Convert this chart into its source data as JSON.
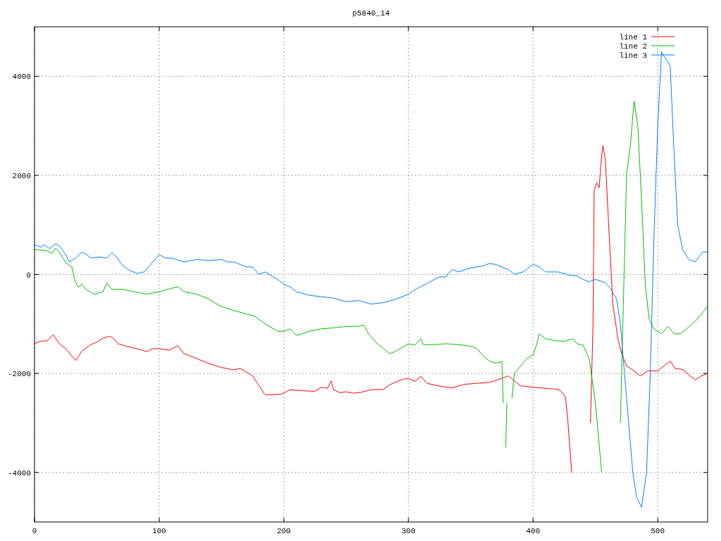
{
  "chart_data": {
    "type": "line",
    "title": "p5840_14",
    "xlim": [
      0,
      540
    ],
    "ylim": [
      -5000,
      5000
    ],
    "xticks": [
      0,
      100,
      200,
      300,
      400,
      500
    ],
    "yticks": [
      -4000,
      -2000,
      0,
      2000,
      4000
    ],
    "grid": true,
    "legend": "top right",
    "line_style": "solid",
    "marker": "none",
    "series": [
      {
        "name": "line 1",
        "color": "#ff0000",
        "x": [
          0,
          5,
          10,
          15,
          20,
          25,
          30,
          33,
          38,
          45,
          50,
          55,
          60,
          63,
          67,
          75,
          85,
          90,
          95,
          100,
          108,
          115,
          120,
          130,
          140,
          150,
          160,
          165,
          175,
          180,
          185,
          190,
          198,
          205,
          215,
          225,
          230,
          235,
          238,
          240,
          245,
          250,
          255,
          262,
          270,
          280,
          285,
          295,
          300,
          305,
          310,
          315,
          325,
          335,
          345,
          355,
          365,
          375,
          380,
          390,
          400,
          410,
          420,
          423,
          426,
          428,
          431,
          432.5,
          438,
          444,
          446,
          448,
          449,
          451,
          453,
          455,
          456,
          458,
          461,
          464,
          468,
          471,
          475,
          480,
          486,
          492,
          500,
          505,
          510,
          514,
          520,
          526,
          530,
          535,
          540
        ],
        "values": [
          -1400,
          -1350,
          -1340,
          -1220,
          -1400,
          -1500,
          -1650,
          -1740,
          -1550,
          -1420,
          -1370,
          -1290,
          -1250,
          -1280,
          -1400,
          -1460,
          -1520,
          -1560,
          -1500,
          -1500,
          -1530,
          -1440,
          -1600,
          -1700,
          -1800,
          -1880,
          -1930,
          -1900,
          -2050,
          -2250,
          -2430,
          -2430,
          -2420,
          -2330,
          -2350,
          -2360,
          -2280,
          -2300,
          -2150,
          -2330,
          -2390,
          -2370,
          -2400,
          -2380,
          -2330,
          -2320,
          -2230,
          -2120,
          -2100,
          -2160,
          -2060,
          -2200,
          -2260,
          -2290,
          -2220,
          -2200,
          -2180,
          -2100,
          -2050,
          -2250,
          -2280,
          -2300,
          -2320,
          -2380,
          -2480,
          -3000,
          -4000,
          null,
          null,
          null,
          -3000,
          -1100,
          1700,
          1850,
          1750,
          2400,
          2600,
          2300,
          800,
          -600,
          -1300,
          -1600,
          -1850,
          -1930,
          -2050,
          -1950,
          -1950,
          -1850,
          -1750,
          -1900,
          -1920,
          -2050,
          -2130,
          -2050,
          -2000
        ]
      },
      {
        "name": "line 2",
        "color": "#00c000",
        "x": [
          0,
          10,
          14,
          17,
          20,
          25,
          30,
          32,
          35,
          38,
          42,
          48,
          55,
          58,
          62,
          70,
          80,
          90,
          100,
          110,
          115,
          120,
          130,
          140,
          145,
          150,
          160,
          170,
          177,
          185,
          195,
          200,
          205,
          210,
          215,
          220,
          230,
          240,
          250,
          260,
          264,
          268,
          275,
          285,
          290,
          300,
          305,
          310,
          312,
          320,
          330,
          340,
          350,
          355,
          360,
          365,
          370,
          375,
          376,
          377,
          378,
          379,
          380,
          381,
          383,
          385,
          390,
          395,
          400,
          403,
          405,
          410,
          418,
          425,
          432,
          435,
          440,
          445,
          450,
          455,
          458,
          462,
          467,
          470,
          473,
          475,
          478,
          481,
          484,
          487,
          490,
          493,
          497,
          503,
          508,
          513,
          518,
          523,
          530,
          535,
          540
        ],
        "values": [
          500,
          480,
          420,
          530,
          450,
          240,
          150,
          -100,
          -260,
          -200,
          -320,
          -400,
          -350,
          -170,
          -300,
          -300,
          -350,
          -400,
          -350,
          -280,
          -250,
          -350,
          -400,
          -500,
          -580,
          -650,
          -730,
          -800,
          -850,
          -1000,
          -1150,
          -1150,
          -1100,
          -1230,
          -1200,
          -1150,
          -1100,
          -1080,
          -1050,
          -1050,
          -1020,
          -1200,
          -1400,
          -1600,
          -1550,
          -1400,
          -1430,
          -1300,
          -1420,
          -1420,
          -1400,
          -1420,
          -1450,
          -1500,
          -1650,
          -1750,
          -1790,
          -1760,
          -2600,
          null,
          -3500,
          -2600,
          null,
          null,
          -2500,
          -2000,
          -1850,
          -1700,
          -1630,
          -1400,
          -1200,
          -1300,
          -1340,
          -1350,
          -1300,
          -1400,
          -1430,
          -1700,
          -2600,
          -4000,
          null,
          null,
          null,
          -3000,
          0,
          2000,
          2600,
          3500,
          3000,
          1500,
          -200,
          -900,
          -1100,
          -1200,
          -1050,
          -1200,
          -1200,
          -1100,
          -950,
          -800,
          -650
        ]
      },
      {
        "name": "line 3",
        "color": "#0080ff",
        "x": [
          0,
          5,
          8,
          12,
          17,
          20,
          25,
          28,
          33,
          38,
          42,
          45,
          52,
          58,
          62,
          66,
          70,
          75,
          82,
          88,
          95,
          100,
          105,
          110,
          120,
          130,
          140,
          150,
          155,
          160,
          170,
          175,
          180,
          185,
          195,
          200,
          205,
          210,
          220,
          230,
          240,
          250,
          260,
          270,
          280,
          290,
          300,
          305,
          315,
          325,
          330,
          335,
          340,
          350,
          360,
          365,
          370,
          380,
          385,
          392,
          400,
          405,
          410,
          420,
          430,
          435,
          440,
          445,
          450,
          458,
          462,
          467,
          470,
          475,
          480,
          483,
          487,
          491,
          494,
          497,
          500,
          503,
          505,
          508,
          510,
          513,
          516,
          520,
          525,
          530,
          533,
          536,
          540
        ],
        "values": [
          600,
          550,
          600,
          520,
          620,
          570,
          400,
          250,
          330,
          450,
          400,
          330,
          350,
          330,
          440,
          350,
          200,
          100,
          20,
          50,
          250,
          400,
          330,
          330,
          250,
          300,
          280,
          300,
          250,
          250,
          150,
          150,
          0,
          50,
          -100,
          -200,
          -250,
          -350,
          -420,
          -450,
          -480,
          -550,
          -530,
          -600,
          -570,
          -500,
          -400,
          -310,
          -180,
          -50,
          -50,
          100,
          50,
          130,
          170,
          220,
          200,
          100,
          0,
          50,
          200,
          150,
          50,
          50,
          -20,
          -30,
          -100,
          -150,
          -100,
          -170,
          -280,
          -500,
          -1000,
          -2500,
          -4000,
          -4500,
          -4700,
          -4000,
          -2000,
          800,
          3000,
          4500,
          4400,
          4300,
          4200,
          2500,
          1000,
          500,
          300,
          250,
          350,
          450,
          450
        ]
      }
    ]
  }
}
